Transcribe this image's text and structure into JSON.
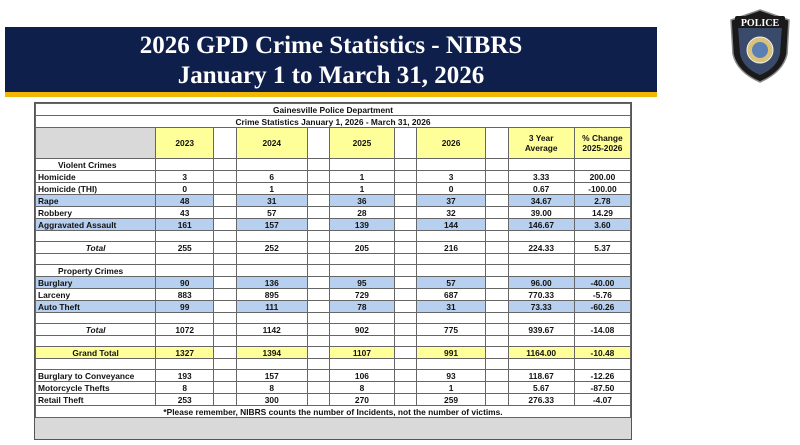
{
  "banner": {
    "line1": "2026 GPD Crime Statistics - NIBRS",
    "line2": "January 1 to March 31, 2026"
  },
  "badge": {
    "text": "POLICE"
  },
  "table": {
    "org": "Gainesville Police Department",
    "period": "Crime Statistics January 1, 2026 - March 31, 2026",
    "headers": {
      "y2023": "2023",
      "y2024": "2024",
      "y2025": "2025",
      "y2026": "2026",
      "avg_line1": "3 Year",
      "avg_line2": "Average",
      "chg_line1": "% Change",
      "chg_line2": "2025-2026"
    },
    "violent": {
      "title": "Violent Crimes",
      "rows": [
        {
          "label": "Homicide",
          "y2023": "3",
          "y2024": "6",
          "y2025": "1",
          "y2026": "3",
          "avg": "3.33",
          "chg": "200.00"
        },
        {
          "label": "Homicide (THI)",
          "y2023": "0",
          "y2024": "1",
          "y2025": "1",
          "y2026": "0",
          "avg": "0.67",
          "chg": "-100.00"
        },
        {
          "label": "Rape",
          "y2023": "48",
          "y2024": "31",
          "y2025": "36",
          "y2026": "37",
          "avg": "34.67",
          "chg": "2.78"
        },
        {
          "label": "Robbery",
          "y2023": "43",
          "y2024": "57",
          "y2025": "28",
          "y2026": "32",
          "avg": "39.00",
          "chg": "14.29"
        },
        {
          "label": "Aggravated Assault",
          "y2023": "161",
          "y2024": "157",
          "y2025": "139",
          "y2026": "144",
          "avg": "146.67",
          "chg": "3.60"
        }
      ],
      "total": {
        "label": "Total",
        "y2023": "255",
        "y2024": "252",
        "y2025": "205",
        "y2026": "216",
        "avg": "224.33",
        "chg": "5.37"
      }
    },
    "property": {
      "title": "Property Crimes",
      "rows": [
        {
          "label": "Burglary",
          "y2023": "90",
          "y2024": "136",
          "y2025": "95",
          "y2026": "57",
          "avg": "96.00",
          "chg": "-40.00"
        },
        {
          "label": "Larceny",
          "y2023": "883",
          "y2024": "895",
          "y2025": "729",
          "y2026": "687",
          "avg": "770.33",
          "chg": "-5.76"
        },
        {
          "label": "Auto Theft",
          "y2023": "99",
          "y2024": "111",
          "y2025": "78",
          "y2026": "31",
          "avg": "73.33",
          "chg": "-60.26"
        }
      ],
      "total": {
        "label": "Total",
        "y2023": "1072",
        "y2024": "1142",
        "y2025": "902",
        "y2026": "775",
        "avg": "939.67",
        "chg": "-14.08"
      }
    },
    "grand_total": {
      "label": "Grand Total",
      "y2023": "1327",
      "y2024": "1394",
      "y2025": "1107",
      "y2026": "991",
      "avg": "1164.00",
      "chg": "-10.48"
    },
    "other": [
      {
        "label": "Burglary to Conveyance",
        "y2023": "193",
        "y2024": "157",
        "y2025": "106",
        "y2026": "93",
        "avg": "118.67",
        "chg": "-12.26"
      },
      {
        "label": "Motorcycle Thefts",
        "y2023": "8",
        "y2024": "8",
        "y2025": "8",
        "y2026": "1",
        "avg": "5.67",
        "chg": "-87.50"
      },
      {
        "label": "Retail Theft",
        "y2023": "253",
        "y2024": "300",
        "y2025": "270",
        "y2026": "259",
        "avg": "276.33",
        "chg": "-4.07"
      }
    ],
    "footnote": "*Please remember, NIBRS counts the number of Incidents, not the number of victims."
  }
}
